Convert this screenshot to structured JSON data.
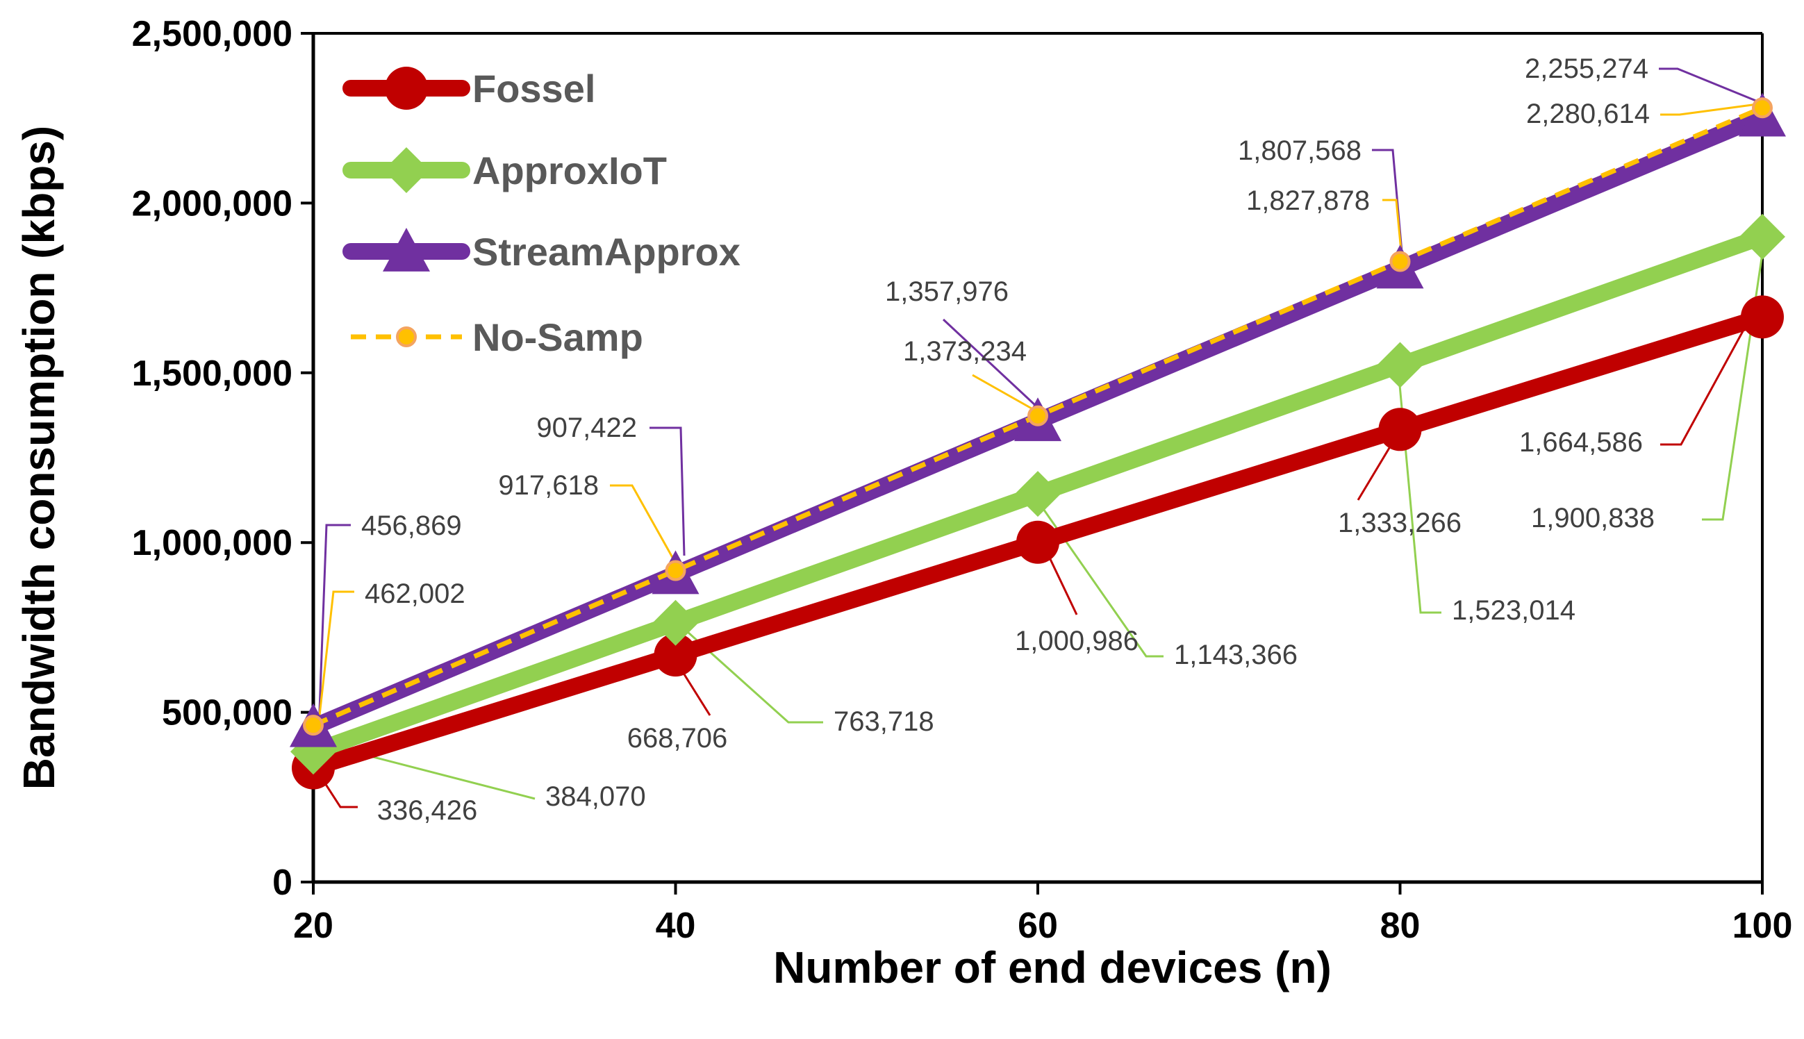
{
  "chart_data": {
    "type": "line",
    "title": "",
    "xlabel": "Number of end devices (n)",
    "ylabel": "Bandwidth consumption (kbps)",
    "x": [
      20,
      40,
      60,
      80,
      100
    ],
    "xlim": [
      20,
      100
    ],
    "ylim": [
      0,
      2500000
    ],
    "y_ticks": [
      "0",
      "500,000",
      "1,000,000",
      "1,500,000",
      "2,000,000",
      "2,500,000"
    ],
    "x_ticks": [
      "20",
      "40",
      "60",
      "80",
      "100"
    ],
    "legend_position": "top-left",
    "grid": false,
    "series": [
      {
        "name": "Fossel",
        "color": "#C00000",
        "marker": "circle",
        "values": [
          336426,
          668706,
          1000986,
          1333266,
          1664586
        ],
        "labels": [
          "336,426",
          "668,706",
          "1,000,986",
          "1,333,266",
          "1,664,586"
        ]
      },
      {
        "name": "ApproxIoT",
        "color": "#92D050",
        "marker": "diamond",
        "values": [
          384070,
          763718,
          1143366,
          1523014,
          1900838
        ],
        "labels": [
          "384,070",
          "763,718",
          "1,143,366",
          "1,523,014",
          "1,900,838"
        ]
      },
      {
        "name": "StreamApprox",
        "color": "#7030A0",
        "marker": "triangle",
        "values": [
          456869,
          907422,
          1357976,
          1807568,
          2255274
        ],
        "labels": [
          "456,869",
          "907,422",
          "1,357,976",
          "1,807,568",
          "2,255,274"
        ]
      },
      {
        "name": "No-Samp",
        "color": "#FFC000",
        "marker": "small-circle",
        "dashed": true,
        "values": [
          462002,
          917618,
          1373234,
          1827878,
          2280614
        ],
        "labels": [
          "462,002",
          "917,618",
          "1,373,234",
          "1,827,878",
          "2,280,614"
        ]
      }
    ]
  }
}
